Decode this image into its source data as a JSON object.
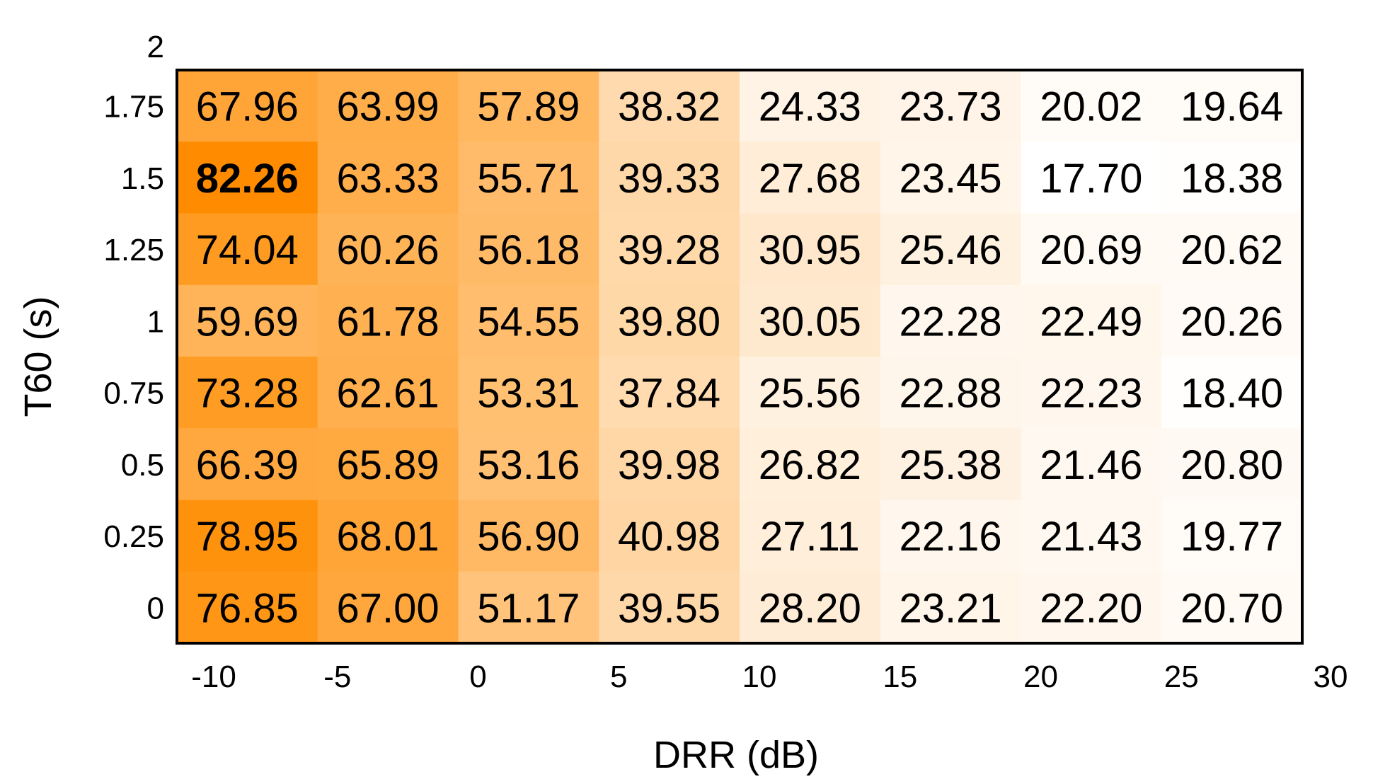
{
  "chart_data": {
    "type": "heatmap",
    "title": "",
    "xlabel": "DRR (dB)",
    "ylabel": "T60 (s)",
    "x_ticks": [
      "-10",
      "-5",
      "0",
      "5",
      "10",
      "15",
      "20",
      "25",
      "30"
    ],
    "y_ticks": [
      "0",
      "0.25",
      "0.5",
      "0.75",
      "1",
      "1.25",
      "1.5",
      "1.75",
      "2"
    ],
    "rows_top_to_bottom": [
      "1.75",
      "1.5",
      "1.25",
      "1",
      "0.75",
      "0.5",
      "0.25",
      "0"
    ],
    "values": [
      [
        67.96,
        63.99,
        57.89,
        38.32,
        24.33,
        23.73,
        20.02,
        19.64
      ],
      [
        82.26,
        63.33,
        55.71,
        39.33,
        27.68,
        23.45,
        17.7,
        18.38
      ],
      [
        74.04,
        60.26,
        56.18,
        39.28,
        30.95,
        25.46,
        20.69,
        20.62
      ],
      [
        59.69,
        61.78,
        54.55,
        39.8,
        30.05,
        22.28,
        22.49,
        20.26
      ],
      [
        73.28,
        62.61,
        53.31,
        37.84,
        25.56,
        22.88,
        22.23,
        18.4
      ],
      [
        66.39,
        65.89,
        53.16,
        39.98,
        26.82,
        25.38,
        21.46,
        20.8
      ],
      [
        78.95,
        68.01,
        56.9,
        40.98,
        27.11,
        22.16,
        21.43,
        19.77
      ],
      [
        76.85,
        67.0,
        51.17,
        39.55,
        28.2,
        23.21,
        22.2,
        20.7
      ]
    ],
    "labels": [
      [
        "67.96",
        "63.99",
        "57.89",
        "38.32",
        "24.33",
        "23.73",
        "20.02",
        "19.64"
      ],
      [
        "82.26",
        "63.33",
        "55.71",
        "39.33",
        "27.68",
        "23.45",
        "17.70",
        "18.38"
      ],
      [
        "74.04",
        "60.26",
        "56.18",
        "39.28",
        "30.95",
        "25.46",
        "20.69",
        "20.62"
      ],
      [
        "59.69",
        "61.78",
        "54.55",
        "39.80",
        "30.05",
        "22.28",
        "22.49",
        "20.26"
      ],
      [
        "73.28",
        "62.61",
        "53.31",
        "37.84",
        "25.56",
        "22.88",
        "22.23",
        "18.40"
      ],
      [
        "66.39",
        "65.89",
        "53.16",
        "39.98",
        "26.82",
        "25.38",
        "21.46",
        "20.80"
      ],
      [
        "78.95",
        "68.01",
        "56.90",
        "40.98",
        "27.11",
        "22.16",
        "21.43",
        "19.77"
      ],
      [
        "76.85",
        "67.00",
        "51.17",
        "39.55",
        "28.20",
        "23.21",
        "22.20",
        "20.70"
      ]
    ],
    "highlight": {
      "row": 1,
      "col": 0
    },
    "colormap": {
      "low": "#ffffff",
      "high": "#ff8c00"
    },
    "grid": false,
    "legend": "none"
  }
}
